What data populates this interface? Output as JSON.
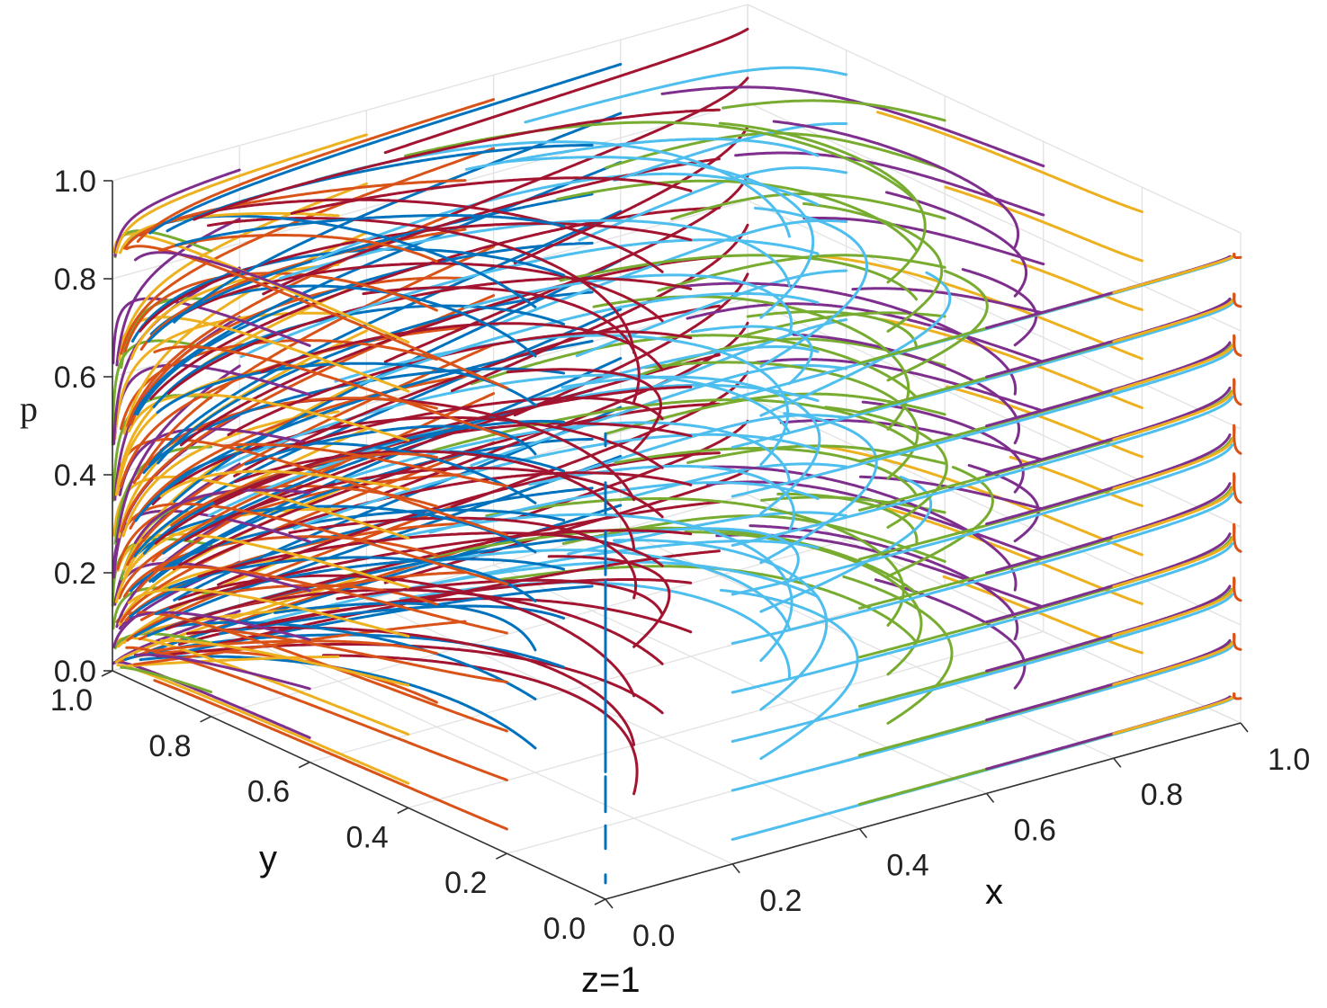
{
  "chart_data": {
    "type": "line",
    "dimensions": 3,
    "xlabel": "x",
    "ylabel": "y",
    "zlabel": "p",
    "caption": "z=1",
    "xlim": [
      0,
      1
    ],
    "ylim": [
      0,
      1
    ],
    "zlim": [
      0,
      1
    ],
    "x_ticks": [
      "0.0",
      "0.2",
      "0.4",
      "0.6",
      "0.8",
      "1.0"
    ],
    "y_ticks": [
      "0.0",
      "0.2",
      "0.4",
      "0.6",
      "0.8",
      "1.0"
    ],
    "z_ticks": [
      "0.0",
      "0.2",
      "0.4",
      "0.6",
      "0.8",
      "1.0"
    ],
    "grid": true,
    "legend": "none",
    "colors": [
      "#0072BD",
      "#D95319",
      "#EDB120",
      "#7E2F8E",
      "#77AC30",
      "#4DBEEE",
      "#A2142F"
    ],
    "levels_p": [
      0.05,
      0.15,
      0.25,
      0.35,
      0.45,
      0.55,
      0.65,
      0.75,
      0.85,
      0.95
    ],
    "start_x": [
      0.0,
      0.2,
      0.4,
      0.6,
      0.8,
      1.0
    ],
    "start_y": [
      0.0,
      0.2,
      0.4,
      0.6,
      0.8,
      1.0
    ],
    "attractor": {
      "x": 0.0,
      "y": 1.0
    }
  }
}
